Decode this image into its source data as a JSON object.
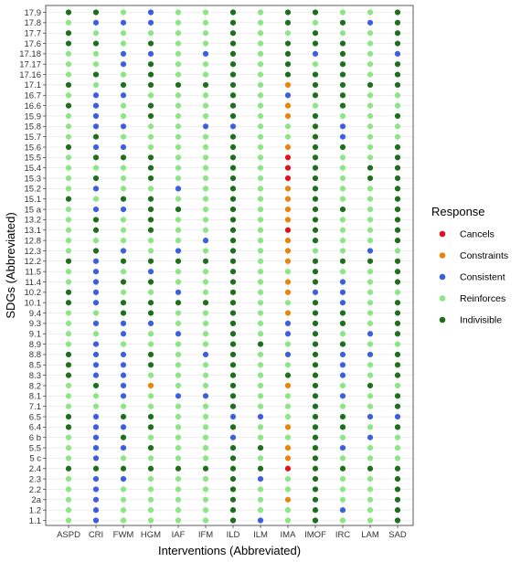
{
  "chart_data": {
    "type": "scatter",
    "xlabel": "Interventions (Abbreviated)",
    "ylabel": "SDGs (Abbreviated)",
    "x_categories": [
      "ASPD",
      "CRI",
      "FWM",
      "HGM",
      "IAF",
      "IFM",
      "ILD",
      "ILM",
      "IMA",
      "IMOF",
      "IRC",
      "LAM",
      "SAD"
    ],
    "y_categories": [
      "1.1",
      "1.2",
      "2a",
      "2.2",
      "2.3",
      "2.4",
      "5 c",
      "5.5",
      "6 b",
      "6.4",
      "6.5",
      "7.1",
      "8.1",
      "8.2",
      "8.3",
      "8.5",
      "8.8",
      "8.9",
      "9.1",
      "9.3",
      "9.4",
      "10.1",
      "10.2",
      "11.4",
      "11.5",
      "12.2",
      "12.3",
      "12.8",
      "13.1",
      "13.2",
      "15 a",
      "15.1",
      "15.2",
      "15.3",
      "15.4",
      "15.5",
      "15.6",
      "15.7",
      "15.8",
      "15.9",
      "16.6",
      "16.7",
      "17.1",
      "17.16",
      "17.17",
      "17.18",
      "17.6",
      "17.7",
      "17.8",
      "17.9"
    ],
    "legend": {
      "title": "Response",
      "position": "right",
      "items": [
        {
          "key": "Cancels",
          "label": "Cancels",
          "color": "#e0131c"
        },
        {
          "key": "Constraints",
          "label": "Constraints",
          "color": "#e8850d"
        },
        {
          "key": "Consistent",
          "label": "Consistent",
          "color": "#3d5fdb"
        },
        {
          "key": "Reinforces",
          "label": "Reinforces",
          "color": "#8ce685"
        },
        {
          "key": "Indivisible",
          "label": "Indivisible",
          "color": "#1d6e1d"
        }
      ]
    },
    "grid": true,
    "points_by_sdg": {
      "17.9": [
        "Indivisible",
        "Indivisible",
        "Reinforces",
        "Consistent",
        "Reinforces",
        "Reinforces",
        "Indivisible",
        "Reinforces",
        "Indivisible",
        "Indivisible",
        "Reinforces",
        "Reinforces",
        "Indivisible"
      ],
      "17.8": [
        "Reinforces",
        "Consistent",
        "Consistent",
        "Consistent",
        "Reinforces",
        "Reinforces",
        "Indivisible",
        "Reinforces",
        "Indivisible",
        "Reinforces",
        "Indivisible",
        "Consistent",
        "Indivisible"
      ],
      "17.7": [
        "Indivisible",
        "Reinforces",
        "Reinforces",
        "Reinforces",
        "Reinforces",
        "Reinforces",
        "Indivisible",
        "Reinforces",
        "Reinforces",
        "Indivisible",
        "Reinforces",
        "Reinforces",
        "Indivisible"
      ],
      "17.6": [
        "Indivisible",
        "Indivisible",
        "Reinforces",
        "Indivisible",
        "Reinforces",
        "Reinforces",
        "Indivisible",
        "Reinforces",
        "Indivisible",
        "Indivisible",
        "Indivisible",
        "Reinforces",
        "Indivisible"
      ],
      "17.18": [
        "Reinforces",
        "Reinforces",
        "Consistent",
        "Consistent",
        "Reinforces",
        "Consistent",
        "Indivisible",
        "Reinforces",
        "Indivisible",
        "Consistent",
        "Indivisible",
        "Reinforces",
        "Consistent"
      ],
      "17.17": [
        "Reinforces",
        "Reinforces",
        "Consistent",
        "Indivisible",
        "Reinforces",
        "Reinforces",
        "Indivisible",
        "Reinforces",
        "Indivisible",
        "Reinforces",
        "Indivisible",
        "Reinforces",
        "Indivisible"
      ],
      "17.16": [
        "Reinforces",
        "Indivisible",
        "Reinforces",
        "Indivisible",
        "Reinforces",
        "Reinforces",
        "Indivisible",
        "Reinforces",
        "Indivisible",
        "Indivisible",
        "Indivisible",
        "Reinforces",
        "Indivisible"
      ],
      "17.1": [
        "Indivisible",
        "Reinforces",
        "Indivisible",
        "Indivisible",
        "Indivisible",
        "Indivisible",
        "Indivisible",
        "Reinforces",
        "Constraints",
        "Indivisible",
        "Indivisible",
        "Indivisible",
        "Indivisible"
      ],
      "16.7": [
        "Reinforces",
        "Consistent",
        "Consistent",
        "Reinforces",
        "Reinforces",
        "Reinforces",
        "Indivisible",
        "Reinforces",
        "Consistent",
        "Indivisible",
        "Indivisible",
        "Reinforces",
        "Reinforces"
      ],
      "16.6": [
        "Indivisible",
        "Consistent",
        "Reinforces",
        "Indivisible",
        "Reinforces",
        "Reinforces",
        "Indivisible",
        "Reinforces",
        "Constraints",
        "Reinforces",
        "Indivisible",
        "Reinforces",
        "Reinforces"
      ],
      "15.9": [
        "Reinforces",
        "Consistent",
        "Reinforces",
        "Indivisible",
        "Reinforces",
        "Reinforces",
        "Indivisible",
        "Reinforces",
        "Constraints",
        "Indivisible",
        "Reinforces",
        "Reinforces",
        "Indivisible"
      ],
      "15.8": [
        "Reinforces",
        "Consistent",
        "Consistent",
        "Reinforces",
        "Reinforces",
        "Consistent",
        "Consistent",
        "Reinforces",
        "Reinforces",
        "Indivisible",
        "Consistent",
        "Reinforces",
        "Reinforces"
      ],
      "15.7": [
        "Reinforces",
        "Indivisible",
        "Reinforces",
        "Reinforces",
        "Reinforces",
        "Reinforces",
        "Indivisible",
        "Reinforces",
        "Reinforces",
        "Indivisible",
        "Consistent",
        "Reinforces",
        "Reinforces"
      ],
      "15.6": [
        "Indivisible",
        "Consistent",
        "Consistent",
        "Reinforces",
        "Reinforces",
        "Reinforces",
        "Indivisible",
        "Reinforces",
        "Constraints",
        "Indivisible",
        "Indivisible",
        "Reinforces",
        "Indivisible"
      ],
      "15.5": [
        "Reinforces",
        "Indivisible",
        "Indivisible",
        "Indivisible",
        "Reinforces",
        "Reinforces",
        "Indivisible",
        "Reinforces",
        "Cancels",
        "Indivisible",
        "Reinforces",
        "Reinforces",
        "Indivisible"
      ],
      "15.4": [
        "Reinforces",
        "Reinforces",
        "Reinforces",
        "Indivisible",
        "Reinforces",
        "Reinforces",
        "Indivisible",
        "Reinforces",
        "Cancels",
        "Indivisible",
        "Reinforces",
        "Indivisible",
        "Indivisible"
      ],
      "15.3": [
        "Reinforces",
        "Indivisible",
        "Reinforces",
        "Indivisible",
        "Reinforces",
        "Reinforces",
        "Indivisible",
        "Reinforces",
        "Cancels",
        "Indivisible",
        "Reinforces",
        "Indivisible",
        "Indivisible"
      ],
      "15.2": [
        "Reinforces",
        "Consistent",
        "Reinforces",
        "Reinforces",
        "Consistent",
        "Reinforces",
        "Indivisible",
        "Reinforces",
        "Constraints",
        "Indivisible",
        "Reinforces",
        "Reinforces",
        "Indivisible"
      ],
      "15.1": [
        "Indivisible",
        "Reinforces",
        "Indivisible",
        "Indivisible",
        "Reinforces",
        "Reinforces",
        "Indivisible",
        "Reinforces",
        "Constraints",
        "Indivisible",
        "Reinforces",
        "Reinforces",
        "Indivisible"
      ],
      "15 a": [
        "Reinforces",
        "Consistent",
        "Consistent",
        "Indivisible",
        "Indivisible",
        "Reinforces",
        "Indivisible",
        "Reinforces",
        "Constraints",
        "Indivisible",
        "Indivisible",
        "Reinforces",
        "Indivisible"
      ],
      "13.2": [
        "Reinforces",
        "Indivisible",
        "Reinforces",
        "Indivisible",
        "Reinforces",
        "Reinforces",
        "Indivisible",
        "Reinforces",
        "Constraints",
        "Indivisible",
        "Reinforces",
        "Reinforces",
        "Indivisible"
      ],
      "13.1": [
        "Reinforces",
        "Indivisible",
        "Reinforces",
        "Indivisible",
        "Reinforces",
        "Reinforces",
        "Indivisible",
        "Reinforces",
        "Cancels",
        "Indivisible",
        "Reinforces",
        "Reinforces",
        "Indivisible"
      ],
      "12.8": [
        "Reinforces",
        "Reinforces",
        "Reinforces",
        "Reinforces",
        "Reinforces",
        "Consistent",
        "Indivisible",
        "Reinforces",
        "Constraints",
        "Indivisible",
        "Reinforces",
        "Reinforces",
        "Indivisible"
      ],
      "12.3": [
        "Reinforces",
        "Indivisible",
        "Consistent",
        "Reinforces",
        "Consistent",
        "Reinforces",
        "Indivisible",
        "Reinforces",
        "Constraints",
        "Reinforces",
        "Reinforces",
        "Consistent",
        "Reinforces"
      ],
      "12.2": [
        "Indivisible",
        "Consistent",
        "Indivisible",
        "Indivisible",
        "Indivisible",
        "Indivisible",
        "Indivisible",
        "Reinforces",
        "Constraints",
        "Indivisible",
        "Indivisible",
        "Indivisible",
        "Indivisible"
      ],
      "11.5": [
        "Reinforces",
        "Consistent",
        "Reinforces",
        "Consistent",
        "Reinforces",
        "Reinforces",
        "Indivisible",
        "Reinforces",
        "Reinforces",
        "Indivisible",
        "Reinforces",
        "Reinforces",
        "Indivisible"
      ],
      "11.4": [
        "Reinforces",
        "Consistent",
        "Indivisible",
        "Indivisible",
        "Reinforces",
        "Reinforces",
        "Indivisible",
        "Reinforces",
        "Constraints",
        "Indivisible",
        "Consistent",
        "Reinforces",
        "Indivisible"
      ],
      "10.2": [
        "Indivisible",
        "Consistent",
        "Reinforces",
        "Reinforces",
        "Consistent",
        "Reinforces",
        "Indivisible",
        "Reinforces",
        "Constraints",
        "Consistent",
        "Consistent",
        "Reinforces",
        "Reinforces"
      ],
      "10.1": [
        "Indivisible",
        "Consistent",
        "Indivisible",
        "Indivisible",
        "Indivisible",
        "Indivisible",
        "Indivisible",
        "Reinforces",
        "Reinforces",
        "Indivisible",
        "Consistent",
        "Reinforces",
        "Indivisible"
      ],
      "9.4": [
        "Reinforces",
        "Reinforces",
        "Indivisible",
        "Indivisible",
        "Reinforces",
        "Reinforces",
        "Indivisible",
        "Reinforces",
        "Constraints",
        "Indivisible",
        "Indivisible",
        "Reinforces",
        "Indivisible"
      ],
      "9.3": [
        "Reinforces",
        "Consistent",
        "Consistent",
        "Consistent",
        "Reinforces",
        "Reinforces",
        "Indivisible",
        "Reinforces",
        "Consistent",
        "Indivisible",
        "Indivisible",
        "Reinforces",
        "Indivisible"
      ],
      "9.1": [
        "Reinforces",
        "Reinforces",
        "Consistent",
        "Reinforces",
        "Consistent",
        "Reinforces",
        "Indivisible",
        "Reinforces",
        "Consistent",
        "Indivisible",
        "Reinforces",
        "Consistent",
        "Indivisible"
      ],
      "8.9": [
        "Reinforces",
        "Consistent",
        "Reinforces",
        "Reinforces",
        "Reinforces",
        "Reinforces",
        "Indivisible",
        "Indivisible",
        "Reinforces",
        "Indivisible",
        "Indivisible",
        "Reinforces",
        "Reinforces"
      ],
      "8.8": [
        "Indivisible",
        "Consistent",
        "Consistent",
        "Indivisible",
        "Reinforces",
        "Consistent",
        "Indivisible",
        "Reinforces",
        "Consistent",
        "Indivisible",
        "Consistent",
        "Consistent",
        "Indivisible"
      ],
      "8.5": [
        "Indivisible",
        "Consistent",
        "Consistent",
        "Indivisible",
        "Reinforces",
        "Reinforces",
        "Indivisible",
        "Reinforces",
        "Reinforces",
        "Indivisible",
        "Consistent",
        "Reinforces",
        "Indivisible"
      ],
      "8.3": [
        "Indivisible",
        "Consistent",
        "Consistent",
        "Reinforces",
        "Reinforces",
        "Reinforces",
        "Indivisible",
        "Reinforces",
        "Indivisible",
        "Indivisible",
        "Consistent",
        "Reinforces",
        "Indivisible"
      ],
      "8.2": [
        "Reinforces",
        "Indivisible",
        "Consistent",
        "Constraints",
        "Reinforces",
        "Reinforces",
        "Indivisible",
        "Reinforces",
        "Constraints",
        "Indivisible",
        "Reinforces",
        "Indivisible",
        "Reinforces"
      ],
      "8.1": [
        "Reinforces",
        "Reinforces",
        "Consistent",
        "Reinforces",
        "Consistent",
        "Consistent",
        "Indivisible",
        "Reinforces",
        "Reinforces",
        "Indivisible",
        "Consistent",
        "Reinforces",
        "Indivisible"
      ],
      "7.1": [
        "Reinforces",
        "Reinforces",
        "Reinforces",
        "Reinforces",
        "Reinforces",
        "Reinforces",
        "Indivisible",
        "Reinforces",
        "Reinforces",
        "Indivisible",
        "Reinforces",
        "Reinforces",
        "Indivisible"
      ],
      "6.5": [
        "Indivisible",
        "Consistent",
        "Indivisible",
        "Indivisible",
        "Reinforces",
        "Reinforces",
        "Consistent",
        "Consistent",
        "Reinforces",
        "Indivisible",
        "Indivisible",
        "Consistent",
        "Consistent"
      ],
      "6.4": [
        "Indivisible",
        "Consistent",
        "Consistent",
        "Indivisible",
        "Reinforces",
        "Reinforces",
        "Indivisible",
        "Reinforces",
        "Constraints",
        "Indivisible",
        "Indivisible",
        "Reinforces",
        "Indivisible"
      ],
      "6 b": [
        "Reinforces",
        "Consistent",
        "Indivisible",
        "Reinforces",
        "Reinforces",
        "Reinforces",
        "Consistent",
        "Reinforces",
        "Reinforces",
        "Indivisible",
        "Reinforces",
        "Consistent",
        "Reinforces"
      ],
      "5.5": [
        "Reinforces",
        "Consistent",
        "Consistent",
        "Indivisible",
        "Reinforces",
        "Reinforces",
        "Indivisible",
        "Indivisible",
        "Constraints",
        "Indivisible",
        "Consistent",
        "Reinforces",
        "Reinforces"
      ],
      "5 c": [
        "Reinforces",
        "Consistent",
        "Reinforces",
        "Reinforces",
        "Reinforces",
        "Reinforces",
        "Indivisible",
        "Reinforces",
        "Constraints",
        "Indivisible",
        "Reinforces",
        "Reinforces",
        "Reinforces"
      ],
      "2.4": [
        "Indivisible",
        "Indivisible",
        "Indivisible",
        "Indivisible",
        "Indivisible",
        "Indivisible",
        "Indivisible",
        "Indivisible",
        "Cancels",
        "Indivisible",
        "Indivisible",
        "Indivisible",
        "Indivisible"
      ],
      "2.3": [
        "Reinforces",
        "Consistent",
        "Consistent",
        "Reinforces",
        "Reinforces",
        "Reinforces",
        "Indivisible",
        "Consistent",
        "Reinforces",
        "Indivisible",
        "Reinforces",
        "Reinforces",
        "Indivisible"
      ],
      "2.2": [
        "Reinforces",
        "Consistent",
        "Reinforces",
        "Reinforces",
        "Reinforces",
        "Reinforces",
        "Indivisible",
        "Reinforces",
        "Reinforces",
        "Indivisible",
        "Reinforces",
        "Reinforces",
        "Indivisible"
      ],
      "2a": [
        "Reinforces",
        "Consistent",
        "Reinforces",
        "Reinforces",
        "Reinforces",
        "Reinforces",
        "Indivisible",
        "Reinforces",
        "Constraints",
        "Indivisible",
        "Reinforces",
        "Reinforces",
        "Indivisible"
      ],
      "1.2": [
        "Reinforces",
        "Consistent",
        "Reinforces",
        "Reinforces",
        "Reinforces",
        "Reinforces",
        "Indivisible",
        "Reinforces",
        "Reinforces",
        "Indivisible",
        "Consistent",
        "Reinforces",
        "Indivisible"
      ],
      "1.1": [
        "Reinforces",
        "Consistent",
        "Reinforces",
        "Reinforces",
        "Reinforces",
        "Reinforces",
        "Indivisible",
        "Consistent",
        "Reinforces",
        "Indivisible",
        "Reinforces",
        "Reinforces",
        "Indivisible"
      ]
    }
  }
}
